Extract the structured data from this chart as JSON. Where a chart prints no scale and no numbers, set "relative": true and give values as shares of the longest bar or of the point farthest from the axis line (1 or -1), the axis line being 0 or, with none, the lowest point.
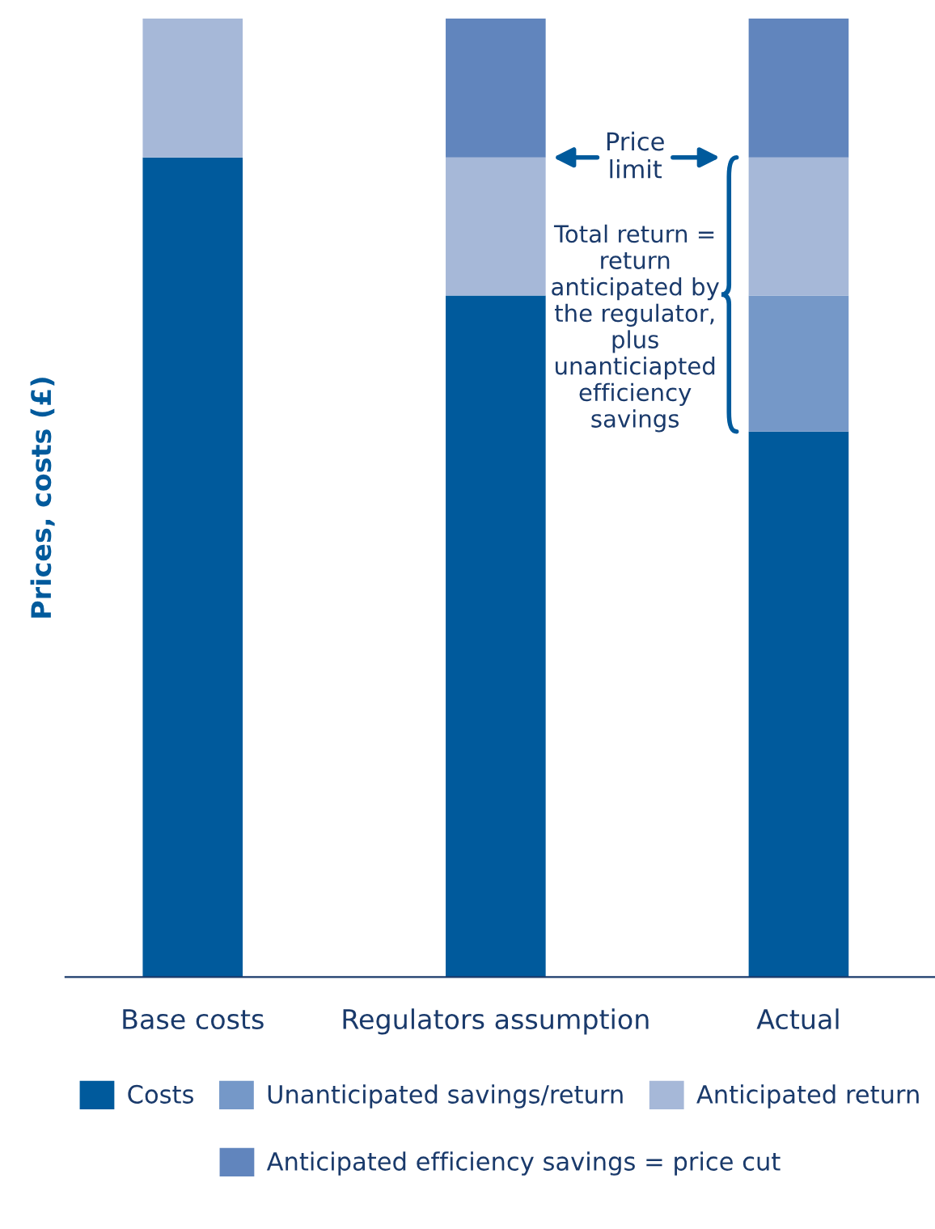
{
  "chart_data": {
    "type": "bar",
    "stacked": true,
    "relative": true,
    "ylabel": "Prices, costs (£)",
    "categories": [
      "Base costs",
      "Regulators assumption",
      "Actual"
    ],
    "series": [
      {
        "name": "Costs",
        "color": "#005a9c",
        "values": [
          0.855,
          0.711,
          0.569
        ]
      },
      {
        "name": "Unanticipated savings/return",
        "color": "#7598c8",
        "values": [
          null,
          null,
          0.142
        ]
      },
      {
        "name": "Anticipated return",
        "color": "#a6b8d8",
        "values": [
          0.145,
          0.144,
          0.144
        ]
      },
      {
        "name": "Anticipated efficiency savings = price cut",
        "color": "#6185bd",
        "values": [
          null,
          0.145,
          0.145
        ]
      }
    ],
    "annotations": [
      "Price limit",
      "Total return = return anticipated by the regulator, plus unanticiapted efficiency savings"
    ],
    "legend": "bottom",
    "grid": false
  }
}
